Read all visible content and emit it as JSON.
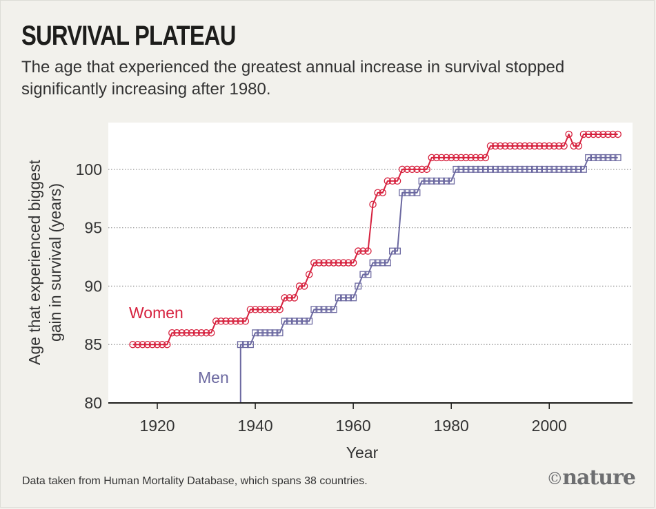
{
  "title": "SURVIVAL PLATEAU",
  "subtitle": "The age that experienced the greatest annual increase in survival stopped significantly increasing after 1980.",
  "source": "Data taken from Human Mortality Database, which spans 38 countries.",
  "brand": {
    "symbol": "©",
    "name": "nature"
  },
  "colors": {
    "women": "#d6203d",
    "men": "#6b68a0",
    "background": "#f2f1ec",
    "plot": "#ffffff"
  },
  "chart_data": {
    "type": "line",
    "title": "SURVIVAL PLATEAU",
    "xlabel": "Year",
    "ylabel": [
      "Age that experienced biggest",
      "gain in survival (years)"
    ],
    "xlim": [
      1910,
      2017
    ],
    "ylim": [
      80,
      104
    ],
    "xticks": [
      1920,
      1940,
      1960,
      1980,
      2000
    ],
    "yticks": [
      80,
      85,
      90,
      95,
      100
    ],
    "grid": "horizontal dotted",
    "series": [
      {
        "name": "Women",
        "marker": "circle",
        "color": "#d6203d",
        "x": [
          1915,
          1916,
          1917,
          1918,
          1919,
          1920,
          1921,
          1922,
          1923,
          1924,
          1925,
          1926,
          1927,
          1928,
          1929,
          1930,
          1931,
          1932,
          1933,
          1934,
          1935,
          1936,
          1937,
          1938,
          1939,
          1940,
          1941,
          1942,
          1943,
          1944,
          1945,
          1946,
          1947,
          1948,
          1949,
          1950,
          1951,
          1952,
          1953,
          1954,
          1955,
          1956,
          1957,
          1958,
          1959,
          1960,
          1961,
          1962,
          1963,
          1964,
          1965,
          1966,
          1967,
          1968,
          1969,
          1970,
          1971,
          1972,
          1973,
          1974,
          1975,
          1976,
          1977,
          1978,
          1979,
          1980,
          1981,
          1982,
          1983,
          1984,
          1985,
          1986,
          1987,
          1988,
          1989,
          1990,
          1991,
          1992,
          1993,
          1994,
          1995,
          1996,
          1997,
          1998,
          1999,
          2000,
          2001,
          2002,
          2003,
          2004,
          2005,
          2006,
          2007,
          2008,
          2009,
          2010,
          2011,
          2012,
          2013,
          2014
        ],
        "y": [
          85,
          85,
          85,
          85,
          85,
          85,
          85,
          85,
          86,
          86,
          86,
          86,
          86,
          86,
          86,
          86,
          86,
          87,
          87,
          87,
          87,
          87,
          87,
          87,
          88,
          88,
          88,
          88,
          88,
          88,
          88,
          89,
          89,
          89,
          90,
          90,
          91,
          92,
          92,
          92,
          92,
          92,
          92,
          92,
          92,
          92,
          93,
          93,
          93,
          97,
          98,
          98,
          99,
          99,
          99,
          100,
          100,
          100,
          100,
          100,
          100,
          101,
          101,
          101,
          101,
          101,
          101,
          101,
          101,
          101,
          101,
          101,
          101,
          102,
          102,
          102,
          102,
          102,
          102,
          102,
          102,
          102,
          102,
          102,
          102,
          102,
          102,
          102,
          102,
          103,
          102,
          102,
          103,
          103,
          103,
          103,
          103,
          103,
          103,
          103
        ]
      },
      {
        "name": "Men",
        "marker": "square",
        "color": "#6b68a0",
        "x": [
          1937,
          1938,
          1939,
          1940,
          1941,
          1942,
          1943,
          1944,
          1945,
          1946,
          1947,
          1948,
          1949,
          1950,
          1951,
          1952,
          1953,
          1954,
          1955,
          1956,
          1957,
          1958,
          1959,
          1960,
          1961,
          1962,
          1963,
          1964,
          1965,
          1966,
          1967,
          1968,
          1969,
          1970,
          1971,
          1972,
          1973,
          1974,
          1975,
          1976,
          1977,
          1978,
          1979,
          1980,
          1981,
          1982,
          1983,
          1984,
          1985,
          1986,
          1987,
          1988,
          1989,
          1990,
          1991,
          1992,
          1993,
          1994,
          1995,
          1996,
          1997,
          1998,
          1999,
          2000,
          2001,
          2002,
          2003,
          2004,
          2005,
          2006,
          2007,
          2008,
          2009,
          2010,
          2011,
          2012,
          2013,
          2014
        ],
        "y": [
          85,
          85,
          85,
          86,
          86,
          86,
          86,
          86,
          86,
          87,
          87,
          87,
          87,
          87,
          87,
          88,
          88,
          88,
          88,
          88,
          89,
          89,
          89,
          89,
          90,
          91,
          91,
          92,
          92,
          92,
          92,
          93,
          93,
          98,
          98,
          98,
          98,
          99,
          99,
          99,
          99,
          99,
          99,
          99,
          100,
          100,
          100,
          100,
          100,
          100,
          100,
          100,
          100,
          100,
          100,
          100,
          100,
          100,
          100,
          100,
          100,
          100,
          100,
          100,
          100,
          100,
          100,
          100,
          100,
          100,
          100,
          101,
          101,
          101,
          101,
          101,
          101,
          101
        ]
      }
    ],
    "annotations": [
      {
        "text": "Women",
        "color": "#d6203d"
      },
      {
        "text": "Men",
        "color": "#6b68a0"
      }
    ]
  }
}
